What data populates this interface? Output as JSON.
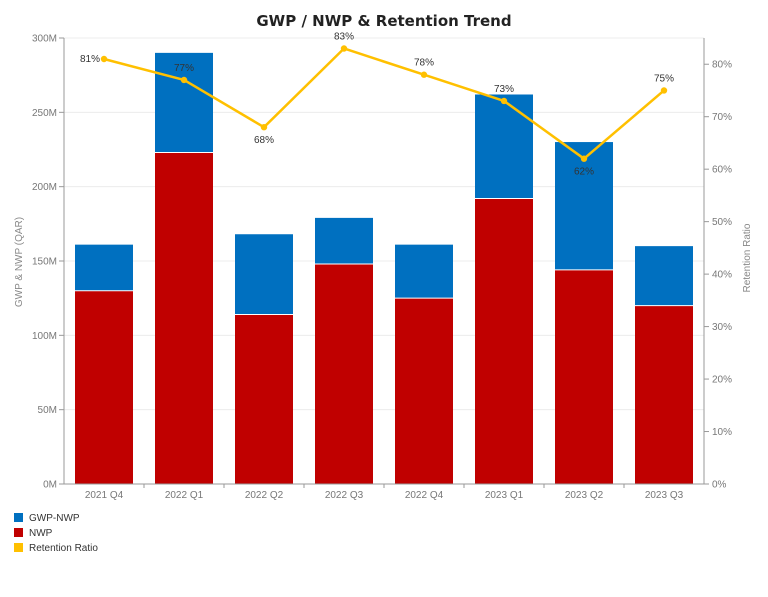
{
  "chart_data": {
    "type": "bar",
    "title": "GWP / NWP & Retention Trend",
    "categories": [
      "2021 Q4",
      "2022 Q1",
      "2022 Q2",
      "2022 Q3",
      "2022 Q4",
      "2023 Q1",
      "2023 Q2",
      "2023 Q3"
    ],
    "series": [
      {
        "name": "NWP",
        "kind": "bar",
        "axis": "left",
        "color": "#c00000",
        "values": [
          130,
          223,
          114,
          148,
          125,
          192,
          144,
          120
        ]
      },
      {
        "name": "GWP-NWP",
        "kind": "bar",
        "axis": "left",
        "color": "#0070c0",
        "values": [
          31,
          67,
          54,
          31,
          36,
          70,
          86,
          40
        ]
      },
      {
        "name": "Retention Ratio",
        "kind": "line",
        "axis": "right",
        "color": "#ffc000",
        "values": [
          81,
          77,
          68,
          83,
          78,
          73,
          62,
          75
        ]
      }
    ],
    "stacked": true,
    "left_axis": {
      "title": "GWP & NWP (QAR)",
      "min": 0,
      "max": 300,
      "ticks": [
        0,
        50,
        100,
        150,
        200,
        250,
        300
      ],
      "tick_labels": [
        "0M",
        "50M",
        "100M",
        "150M",
        "200M",
        "250M",
        "300M"
      ]
    },
    "right_axis": {
      "title": "Retention Ratio",
      "min": 0,
      "max": 85,
      "ticks": [
        0,
        10,
        20,
        30,
        40,
        50,
        60,
        70,
        80
      ],
      "tick_labels": [
        "0%",
        "10%",
        "20%",
        "30%",
        "40%",
        "50%",
        "60%",
        "70%",
        "80%"
      ]
    },
    "line_labels": [
      "81%",
      "77%",
      "68%",
      "83%",
      "78%",
      "73%",
      "62%",
      "75%"
    ],
    "legend": {
      "placement": "bottom-left",
      "items": [
        {
          "label": "GWP-NWP",
          "color": "#0070c0"
        },
        {
          "label": "NWP",
          "color": "#c00000"
        },
        {
          "label": "Retention Ratio",
          "color": "#ffc000"
        }
      ]
    }
  }
}
